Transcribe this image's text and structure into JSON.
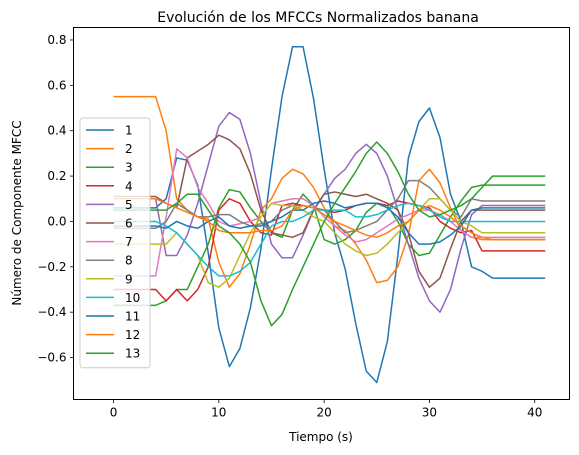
{
  "chart_data": {
    "type": "line",
    "title": "Evolución de los MFCCs Normalizados banana",
    "xlabel": "Tiempo (s)",
    "ylabel": "Número de Componente MFCC",
    "xlim": [
      -3.8,
      43.3
    ],
    "ylim": [
      -0.785,
      0.855
    ],
    "xticks": [
      0,
      10,
      20,
      30,
      40
    ],
    "yticks": [
      -0.6,
      -0.4,
      -0.2,
      0.0,
      0.2,
      0.4,
      0.6,
      0.8
    ],
    "xtick_labels": [
      "0",
      "10",
      "20",
      "30",
      "40"
    ],
    "ytick_labels": [
      "−0.6",
      "−0.4",
      "−0.2",
      "0.0",
      "0.2",
      "0.4",
      "0.6",
      "0.8"
    ],
    "legend_position": "center-left",
    "grid": false,
    "series": [
      {
        "name": "1",
        "color": "#1f77b4",
        "values": [
          0.06,
          0.06,
          0.06,
          0.06,
          0.06,
          0.1,
          0.28,
          0.27,
          0.16,
          -0.14,
          -0.47,
          -0.64,
          -0.56,
          -0.38,
          -0.12,
          0.23,
          0.55,
          0.77,
          0.77,
          0.54,
          0.23,
          -0.05,
          -0.21,
          -0.45,
          -0.66,
          -0.71,
          -0.53,
          -0.15,
          0.28,
          0.44,
          0.5,
          0.37,
          0.12,
          0.0,
          -0.2,
          -0.22,
          -0.25,
          -0.25,
          -0.25,
          -0.25,
          -0.25,
          -0.25
        ]
      },
      {
        "name": "2",
        "color": "#ff7f0e",
        "values": [
          0.55,
          0.55,
          0.55,
          0.55,
          0.55,
          0.4,
          0.1,
          0.05,
          0.02,
          0.01,
          -0.18,
          -0.29,
          -0.23,
          -0.1,
          0.05,
          0.1,
          0.19,
          0.23,
          0.21,
          0.15,
          0.06,
          -0.02,
          -0.04,
          -0.1,
          -0.17,
          -0.27,
          -0.26,
          -0.2,
          -0.06,
          0.18,
          0.23,
          0.17,
          0.06,
          -0.04,
          -0.07,
          -0.08,
          -0.08,
          -0.08,
          -0.08,
          -0.08,
          -0.08,
          -0.08
        ]
      },
      {
        "name": "3",
        "color": "#2ca02c",
        "values": [
          -0.37,
          -0.37,
          -0.37,
          -0.37,
          -0.37,
          -0.35,
          -0.3,
          -0.3,
          -0.2,
          -0.1,
          0.06,
          0.14,
          0.13,
          0.06,
          0.0,
          -0.05,
          -0.07,
          0.05,
          0.12,
          0.07,
          -0.08,
          -0.1,
          -0.08,
          -0.04,
          0.04,
          0.08,
          0.07,
          0.0,
          -0.1,
          -0.15,
          -0.14,
          -0.06,
          0.02,
          0.09,
          0.15,
          0.16,
          0.16,
          0.16,
          0.16,
          0.16,
          0.16,
          0.16
        ]
      },
      {
        "name": "4",
        "color": "#d62728",
        "values": [
          -0.3,
          -0.3,
          -0.3,
          -0.3,
          -0.3,
          -0.35,
          -0.3,
          -0.35,
          -0.3,
          -0.2,
          0.05,
          0.1,
          0.08,
          0.0,
          -0.05,
          -0.06,
          0.07,
          0.08,
          0.07,
          0.06,
          0.05,
          0.04,
          0.05,
          0.07,
          0.08,
          0.08,
          0.07,
          0.09,
          0.08,
          0.07,
          0.06,
          0.0,
          -0.03,
          -0.05,
          -0.04,
          -0.13,
          -0.13,
          -0.13,
          -0.13,
          -0.13,
          -0.13,
          -0.13
        ]
      },
      {
        "name": "5",
        "color": "#9467bd",
        "values": [
          0.1,
          0.1,
          0.1,
          0.1,
          0.1,
          -0.15,
          -0.15,
          -0.06,
          0.08,
          0.25,
          0.42,
          0.48,
          0.45,
          0.3,
          0.08,
          -0.1,
          -0.16,
          -0.16,
          -0.06,
          0.05,
          0.12,
          0.19,
          0.23,
          0.3,
          0.34,
          0.3,
          0.2,
          0.05,
          -0.1,
          -0.25,
          -0.35,
          -0.4,
          -0.3,
          -0.12,
          0.03,
          0.07,
          0.07,
          0.07,
          0.07,
          0.07,
          0.07,
          0.07
        ]
      },
      {
        "name": "6",
        "color": "#8c564b",
        "values": [
          0.11,
          0.11,
          0.11,
          0.11,
          0.11,
          0.08,
          0.06,
          0.28,
          0.31,
          0.34,
          0.38,
          0.36,
          0.32,
          0.21,
          0.05,
          -0.05,
          -0.06,
          -0.07,
          -0.05,
          0.05,
          0.12,
          0.13,
          0.12,
          0.11,
          0.12,
          0.1,
          0.08,
          0.05,
          -0.05,
          -0.22,
          -0.29,
          -0.25,
          -0.12,
          0.0,
          0.05,
          0.05,
          0.05,
          0.05,
          0.05,
          0.05,
          0.05,
          0.05
        ]
      },
      {
        "name": "7",
        "color": "#e377c2",
        "values": [
          -0.24,
          -0.24,
          -0.24,
          -0.24,
          -0.24,
          0.02,
          0.32,
          0.28,
          0.15,
          0.08,
          0.0,
          -0.02,
          -0.01,
          0.0,
          0.02,
          0.08,
          0.09,
          0.1,
          0.1,
          0.07,
          0.02,
          -0.02,
          -0.06,
          -0.09,
          -0.08,
          -0.05,
          -0.02,
          0.01,
          0.03,
          0.05,
          0.05,
          0.03,
          0.0,
          -0.04,
          -0.07,
          -0.07,
          -0.07,
          -0.07,
          -0.07,
          -0.07,
          -0.07,
          -0.07
        ]
      },
      {
        "name": "8",
        "color": "#7f7f7f",
        "values": [
          -0.03,
          -0.03,
          -0.03,
          -0.03,
          -0.03,
          0.0,
          0.08,
          0.05,
          0.02,
          0.02,
          0.03,
          0.03,
          0.0,
          -0.02,
          -0.01,
          0.0,
          0.05,
          0.07,
          0.07,
          0.06,
          0.05,
          0.0,
          -0.05,
          -0.04,
          -0.02,
          0.0,
          0.05,
          0.1,
          0.18,
          0.18,
          0.15,
          0.1,
          0.05,
          0.02,
          0.1,
          0.09,
          0.09,
          0.09,
          0.09,
          0.09,
          0.09,
          0.09
        ]
      },
      {
        "name": "9",
        "color": "#bcbd22",
        "values": [
          -0.1,
          -0.1,
          -0.1,
          -0.1,
          -0.1,
          -0.1,
          -0.05,
          -0.1,
          -0.15,
          -0.27,
          -0.29,
          -0.25,
          -0.15,
          -0.05,
          0.02,
          0.08,
          0.07,
          0.07,
          0.05,
          0.02,
          0.0,
          -0.05,
          -0.1,
          -0.13,
          -0.15,
          -0.14,
          -0.1,
          -0.05,
          0.0,
          0.05,
          0.1,
          0.1,
          0.05,
          0.0,
          -0.02,
          -0.05,
          -0.05,
          -0.05,
          -0.05,
          -0.05,
          -0.05,
          -0.05
        ]
      },
      {
        "name": "10",
        "color": "#17becf",
        "values": [
          0.0,
          0.0,
          0.0,
          0.0,
          0.0,
          -0.02,
          -0.05,
          -0.1,
          -0.15,
          -0.2,
          -0.24,
          -0.24,
          -0.22,
          -0.18,
          -0.1,
          -0.02,
          0.0,
          0.0,
          0.02,
          0.05,
          0.05,
          0.05,
          0.05,
          0.02,
          0.02,
          0.03,
          0.05,
          0.07,
          0.08,
          0.07,
          0.05,
          0.02,
          0.0,
          0.0,
          0.0,
          0.0,
          0.0,
          0.0,
          0.0,
          0.0,
          0.0,
          0.0
        ]
      },
      {
        "name": "11",
        "color": "#1f77b4",
        "values": [
          -0.02,
          -0.02,
          -0.02,
          -0.02,
          -0.02,
          -0.03,
          0.0,
          -0.02,
          -0.03,
          0.0,
          0.02,
          -0.02,
          -0.03,
          -0.02,
          -0.02,
          0.0,
          0.02,
          0.05,
          0.05,
          0.08,
          0.09,
          0.08,
          0.06,
          0.07,
          0.08,
          0.08,
          0.06,
          0.02,
          -0.05,
          -0.1,
          -0.1,
          -0.09,
          -0.06,
          -0.02,
          0.05,
          0.06,
          0.06,
          0.06,
          0.06,
          0.06,
          0.06,
          0.06
        ]
      },
      {
        "name": "12",
        "color": "#ff7f0e",
        "values": [
          0.1,
          0.1,
          0.1,
          0.1,
          0.1,
          0.08,
          0.06,
          0.04,
          0.02,
          0.0,
          -0.04,
          -0.05,
          -0.05,
          -0.05,
          -0.04,
          -0.04,
          -0.02,
          0.05,
          0.07,
          0.06,
          0.03,
          0.0,
          -0.02,
          -0.04,
          -0.06,
          -0.07,
          -0.05,
          -0.02,
          0.0,
          0.05,
          0.07,
          0.05,
          0.02,
          -0.02,
          -0.05,
          -0.07,
          -0.08,
          -0.08,
          -0.08,
          -0.08,
          -0.08,
          -0.08
        ]
      },
      {
        "name": "13",
        "color": "#2ca02c",
        "values": [
          0.05,
          0.05,
          0.05,
          0.05,
          0.05,
          0.05,
          0.08,
          0.12,
          0.12,
          0.05,
          -0.02,
          -0.05,
          -0.1,
          -0.18,
          -0.35,
          -0.46,
          -0.41,
          -0.3,
          -0.2,
          -0.1,
          0.0,
          0.08,
          0.15,
          0.22,
          0.3,
          0.35,
          0.3,
          0.22,
          0.12,
          0.05,
          0.02,
          0.03,
          0.05,
          0.07,
          0.1,
          0.15,
          0.2,
          0.2,
          0.2,
          0.2,
          0.2,
          0.2
        ]
      }
    ]
  }
}
